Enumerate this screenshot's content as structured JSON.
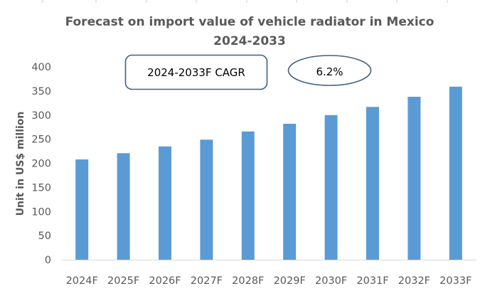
{
  "chart_data": {
    "type": "bar",
    "title": "Forecast on import value of vehicle radiator in Mexico 2024-2033",
    "title_lines": [
      "Forecast on import value of vehicle radiator in Mexico",
      "2024-2033"
    ],
    "xlabel": "",
    "ylabel": "Unit in US$ million",
    "categories": [
      "2024F",
      "2025F",
      "2026F",
      "2027F",
      "2028F",
      "2029F",
      "2030F",
      "2031F",
      "2032F",
      "2033F"
    ],
    "values": [
      208,
      221,
      235,
      249,
      266,
      282,
      300,
      317,
      338,
      359
    ],
    "ylim": [
      0,
      400
    ],
    "yticks": [
      0,
      50,
      100,
      150,
      200,
      250,
      300,
      350,
      400
    ],
    "grid": false,
    "legend": "none",
    "bar_color": "#5b9bd5",
    "annotations": {
      "cagr_label": "2024-2033F CAGR",
      "cagr_value": "6.2%",
      "border_color": "#41607e"
    }
  }
}
